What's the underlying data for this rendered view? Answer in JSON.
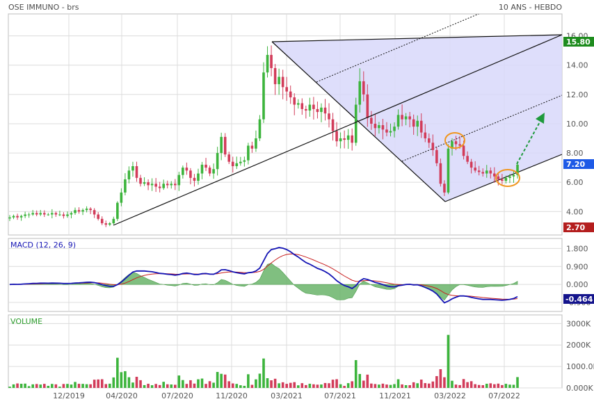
{
  "header": {
    "title": "OSE IMMUNO - brs",
    "period": "10 ANS - HEBDO"
  },
  "colors": {
    "up": "#3cb43c",
    "down": "#d23c5a",
    "channel_fill": "#d8d8fa",
    "grid": "#dcdcdc",
    "macd_line": "#1414b4",
    "signal_line": "#c81e1e",
    "histogram": "#6ab46a",
    "badge_high": "#1e8c1e",
    "badge_last": "#1e5ae6",
    "badge_low": "#b41e1e",
    "badge_macd": "#14148c",
    "circle": "#f0961e",
    "arrow": "#1e9a3c"
  },
  "chart_data": [
    {
      "type": "candlestick",
      "title": "OSE IMMUNO - brs",
      "x_ticks": [
        "12/2019",
        "04/2020",
        "07/2020",
        "11/2020",
        "03/2021",
        "07/2021",
        "11/2021",
        "03/2022",
        "07/2022"
      ],
      "y_ticks": [
        "4.00",
        "6.00",
        "8.00",
        "10.00",
        "12.00",
        "14.00",
        "16.00"
      ],
      "ylim": [
        2.4,
        17.5
      ],
      "grid": true,
      "price_labels": {
        "high": "15.80",
        "last": "7.20",
        "low": "2.70"
      },
      "weekly_closes": [
        3.6,
        3.7,
        3.6,
        3.7,
        3.8,
        3.8,
        3.9,
        3.8,
        3.9,
        3.8,
        3.8,
        3.9,
        3.8,
        3.8,
        3.7,
        3.8,
        3.9,
        4.1,
        4.0,
        4.1,
        4.2,
        4.1,
        3.8,
        3.5,
        3.2,
        3.1,
        3.2,
        3.5,
        4.6,
        5.3,
        6.2,
        6.8,
        7.1,
        6.3,
        5.9,
        6.0,
        5.8,
        5.9,
        5.7,
        5.6,
        5.9,
        5.8,
        5.9,
        5.8,
        6.5,
        7.0,
        6.8,
        6.3,
        6.1,
        6.6,
        7.2,
        7.0,
        6.6,
        6.9,
        8.0,
        9.1,
        7.9,
        7.4,
        7.1,
        7.3,
        7.4,
        7.5,
        8.5,
        8.3,
        9.0,
        10.3,
        13.5,
        14.7,
        13.8,
        12.7,
        13.2,
        12.5,
        12.2,
        11.8,
        11.3,
        11.4,
        11.0,
        10.9,
        11.3,
        11.0,
        10.8,
        11.1,
        10.7,
        10.3,
        9.5,
        8.8,
        9.0,
        8.9,
        9.2,
        8.7,
        11.3,
        12.9,
        12.0,
        10.4,
        10.0,
        9.7,
        9.9,
        9.6,
        9.4,
        9.5,
        9.8,
        10.6,
        10.3,
        10.5,
        10.3,
        9.8,
        10.2,
        9.4,
        9.0,
        8.7,
        8.2,
        7.3,
        5.9,
        5.3,
        8.3,
        8.8,
        8.6,
        8.5,
        7.8,
        7.4,
        7.0,
        6.8,
        6.7,
        6.6,
        6.8,
        6.6,
        6.4,
        6.2,
        6.1,
        6.3,
        6.4,
        6.5,
        7.2
      ]
    },
    {
      "type": "line",
      "title": "MACD (12, 26, 9)",
      "y_ticks": [
        "1.800",
        "0.900",
        "0.000",
        "-0.900"
      ],
      "ylim": [
        -1.35,
        2.3
      ],
      "last_label": "-0.464"
    },
    {
      "type": "bar",
      "title": "VOLUME",
      "y_ticks": [
        "3000K",
        "2000K",
        "1000.0K",
        "0.000K"
      ],
      "ylim": [
        0,
        3400
      ]
    }
  ]
}
